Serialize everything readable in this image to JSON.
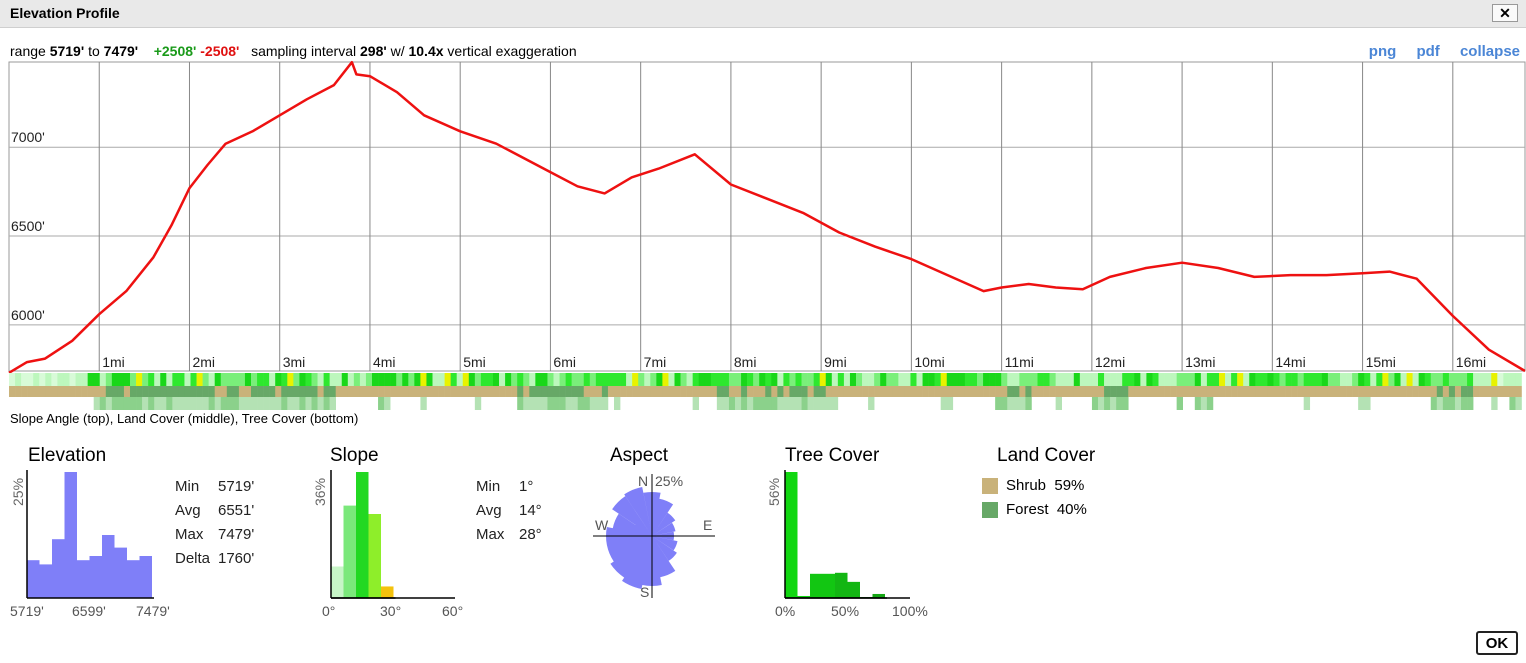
{
  "window": {
    "title": "Elevation Profile",
    "close_label": "✕",
    "ok_label": "OK"
  },
  "summary": {
    "range_label": "range",
    "min": "5719'",
    "to": "to",
    "max": "7479'",
    "gain": "+2508'",
    "loss": "-2508'",
    "sampling_label": "sampling interval",
    "interval": "298'",
    "w": "w/",
    "exaggeration": "10.4x",
    "exaggeration_label": "vertical exaggeration"
  },
  "links": {
    "png": "png",
    "pdf": "pdf",
    "collapse": "collapse"
  },
  "strip_caption": "Slope Angle (top), Land Cover (middle), Tree Cover (bottom)",
  "chart_data": [
    {
      "type": "line",
      "title": "",
      "y_ticks": [
        "6000'",
        "6500'",
        "7000'"
      ],
      "y_tick_values": [
        6000,
        6500,
        7000
      ],
      "x_ticks": [
        "1mi",
        "2mi",
        "3mi",
        "4mi",
        "5mi",
        "6mi",
        "7mi",
        "8mi",
        "9mi",
        "10mi",
        "11mi",
        "12mi",
        "13mi",
        "14mi",
        "15mi",
        "16mi"
      ],
      "ylim": [
        5740,
        7480
      ],
      "xlim": [
        0,
        16.8
      ],
      "grid": true,
      "series": [
        {
          "color": "#ee1111",
          "x": [
            0,
            0.2,
            0.4,
            0.7,
            1.0,
            1.3,
            1.6,
            1.8,
            2.0,
            2.2,
            2.4,
            2.7,
            3.0,
            3.3,
            3.6,
            3.8,
            3.85,
            4.0,
            4.3,
            4.6,
            5.0,
            5.4,
            6.0,
            6.3,
            6.6,
            6.9,
            7.2,
            7.6,
            8.0,
            8.4,
            8.8,
            9.2,
            9.6,
            10.0,
            10.4,
            10.8,
            11.0,
            11.3,
            11.6,
            11.9,
            12.2,
            12.6,
            13.0,
            13.4,
            13.8,
            14.2,
            14.6,
            15.0,
            15.3,
            15.6,
            16.0,
            16.4,
            16.8
          ],
          "y": [
            5730,
            5790,
            5810,
            5910,
            6060,
            6190,
            6380,
            6560,
            6770,
            6900,
            7020,
            7090,
            7180,
            7270,
            7350,
            7479,
            7410,
            7400,
            7310,
            7180,
            7090,
            7020,
            6860,
            6780,
            6740,
            6830,
            6880,
            6960,
            6790,
            6710,
            6630,
            6520,
            6440,
            6370,
            6280,
            6190,
            6210,
            6230,
            6210,
            6200,
            6270,
            6320,
            6350,
            6320,
            6270,
            6280,
            6280,
            6290,
            6300,
            6260,
            6050,
            5860,
            5740
          ]
        }
      ]
    },
    {
      "type": "bar",
      "title": "Elevation",
      "ylabel": "25%",
      "xlabels": [
        "5719'",
        "6599'",
        "7479'"
      ],
      "values": [
        9,
        8,
        14,
        30,
        9,
        10,
        15,
        12,
        9,
        10
      ],
      "color": "#7f7ff8",
      "stats": [
        {
          "k": "Min",
          "v": "5719'"
        },
        {
          "k": "Avg",
          "v": "6551'"
        },
        {
          "k": "Max",
          "v": "7479'"
        },
        {
          "k": "Delta",
          "v": "1760'"
        }
      ]
    },
    {
      "type": "bar",
      "title": "Slope",
      "ylabel": "36%",
      "xlabels": [
        "0°",
        "30°",
        "60°"
      ],
      "values": [
        30,
        88,
        120,
        80,
        11
      ],
      "colors": [
        "#c7f5c7",
        "#7be87b",
        "#22d822",
        "#8eee2a",
        "#f4c20d"
      ],
      "stats": [
        {
          "k": "Min",
          "v": "1°"
        },
        {
          "k": "Avg",
          "v": "14°"
        },
        {
          "k": "Max",
          "v": "28°"
        }
      ]
    },
    {
      "type": "pie",
      "title": "Aspect",
      "labels": [
        "N",
        "E",
        "S",
        "W"
      ],
      "scale_label": "25%",
      "color": "#7f7ff8"
    },
    {
      "type": "bar",
      "title": "Tree Cover",
      "ylabel": "56%",
      "xlabels": [
        "0%",
        "50%",
        "100%"
      ],
      "values": [
        125,
        2,
        24,
        24,
        25,
        16,
        1,
        4
      ],
      "colors": [
        "#11d711",
        "#11d711",
        "#12c612",
        "#12c612",
        "#13b613",
        "#13b613",
        "#14a614",
        "#14a614"
      ]
    },
    {
      "type": "table",
      "title": "Land Cover",
      "rows": [
        {
          "label": "Shrub",
          "value": "59%",
          "color": "#c9b27a"
        },
        {
          "label": "Forest",
          "value": "40%",
          "color": "#67a867"
        }
      ]
    }
  ]
}
